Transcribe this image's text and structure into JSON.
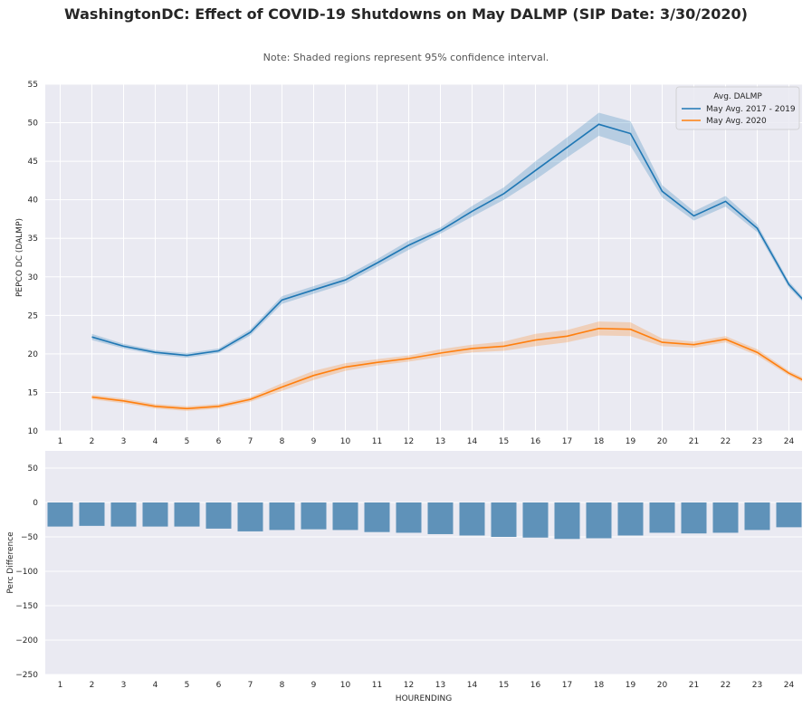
{
  "title": "WashingtonDC: Effect of COVID-19 Shutdowns on May DALMP (SIP Date: 3/30/2020)",
  "subtitle": "Note: Shaded regions represent 95% confidence interval.",
  "chart_data": [
    {
      "type": "line",
      "ylabel": "PEPCO DC (DALMP)",
      "xlabel": "",
      "xlim": [
        0.5,
        24.5
      ],
      "ylim": [
        10,
        55
      ],
      "x_ticks": [
        1,
        2,
        3,
        4,
        5,
        6,
        7,
        8,
        9,
        10,
        11,
        12,
        13,
        14,
        15,
        16,
        17,
        18,
        19,
        20,
        21,
        22,
        23,
        24
      ],
      "y_ticks": [
        10,
        15,
        20,
        25,
        30,
        35,
        40,
        45,
        50,
        55
      ],
      "grid": true,
      "legend": {
        "title": "Avg. DALMP",
        "position": "top-right"
      },
      "x": [
        2,
        3,
        4,
        5,
        6,
        7,
        8,
        9,
        10,
        11,
        12,
        13,
        14,
        15,
        16,
        17,
        18,
        19,
        20,
        21,
        22,
        23,
        24,
        24.5
      ],
      "series": [
        {
          "name": "May Avg. 2017 - 2019",
          "color": "#1f77b4",
          "values": [
            22.2,
            21.0,
            20.2,
            19.8,
            20.4,
            22.8,
            27.0,
            28.3,
            29.6,
            31.8,
            34.1,
            36.0,
            38.5,
            40.8,
            43.8,
            46.8,
            49.8,
            48.6,
            41.1,
            37.9,
            39.8,
            36.3,
            29.0,
            26.8
          ],
          "ci_lower": [
            21.8,
            20.7,
            19.9,
            19.5,
            20.1,
            22.4,
            26.5,
            27.8,
            29.1,
            31.3,
            33.5,
            35.6,
            37.8,
            40.0,
            42.6,
            45.5,
            48.3,
            47.0,
            40.3,
            37.3,
            39.1,
            35.8,
            28.6,
            26.5
          ],
          "ci_upper": [
            22.6,
            21.3,
            20.5,
            20.1,
            20.7,
            23.2,
            27.5,
            28.8,
            30.1,
            32.3,
            34.7,
            36.4,
            39.2,
            41.6,
            45.0,
            48.1,
            51.3,
            50.2,
            41.9,
            38.5,
            40.5,
            36.8,
            29.4,
            27.1
          ]
        },
        {
          "name": "May Avg. 2020",
          "color": "#ff7f0e",
          "values": [
            14.4,
            13.9,
            13.2,
            12.9,
            13.2,
            14.1,
            15.7,
            17.2,
            18.3,
            18.9,
            19.4,
            20.1,
            20.7,
            21.0,
            21.8,
            22.3,
            23.3,
            23.2,
            21.5,
            21.2,
            21.9,
            20.2,
            17.5,
            16.5
          ],
          "ci_lower": [
            14.1,
            13.6,
            12.9,
            12.6,
            12.9,
            13.8,
            15.2,
            16.6,
            17.8,
            18.5,
            19.0,
            19.6,
            20.2,
            20.4,
            21.0,
            21.5,
            22.4,
            22.3,
            21.0,
            20.8,
            21.5,
            19.8,
            17.2,
            16.2
          ],
          "ci_upper": [
            14.7,
            14.2,
            13.5,
            13.2,
            13.5,
            14.4,
            16.2,
            17.8,
            18.8,
            19.3,
            19.8,
            20.6,
            21.2,
            21.6,
            22.6,
            23.1,
            24.2,
            24.1,
            22.0,
            21.6,
            22.3,
            20.6,
            17.8,
            16.8
          ]
        }
      ]
    },
    {
      "type": "bar",
      "ylabel": "Perc Difference",
      "xlabel": "HOURENDING",
      "ylim": [
        -250,
        75
      ],
      "y_ticks": [
        50,
        0,
        -50,
        -100,
        -150,
        -200,
        -250
      ],
      "grid": true,
      "color": "#5f92b9",
      "categories": [
        "1",
        "2",
        "3",
        "4",
        "5",
        "6",
        "7",
        "8",
        "9",
        "10",
        "11",
        "12",
        "13",
        "14",
        "15",
        "16",
        "17",
        "18",
        "19",
        "20",
        "21",
        "22",
        "23",
        "24"
      ],
      "values": [
        -35,
        -34,
        -35,
        -35,
        -35,
        -38,
        -42,
        -40,
        -39,
        -40,
        -43,
        -44,
        -46,
        -48,
        -50,
        -51,
        -53,
        -52,
        -48,
        -44,
        -45,
        -44,
        -40,
        -36
      ]
    }
  ]
}
